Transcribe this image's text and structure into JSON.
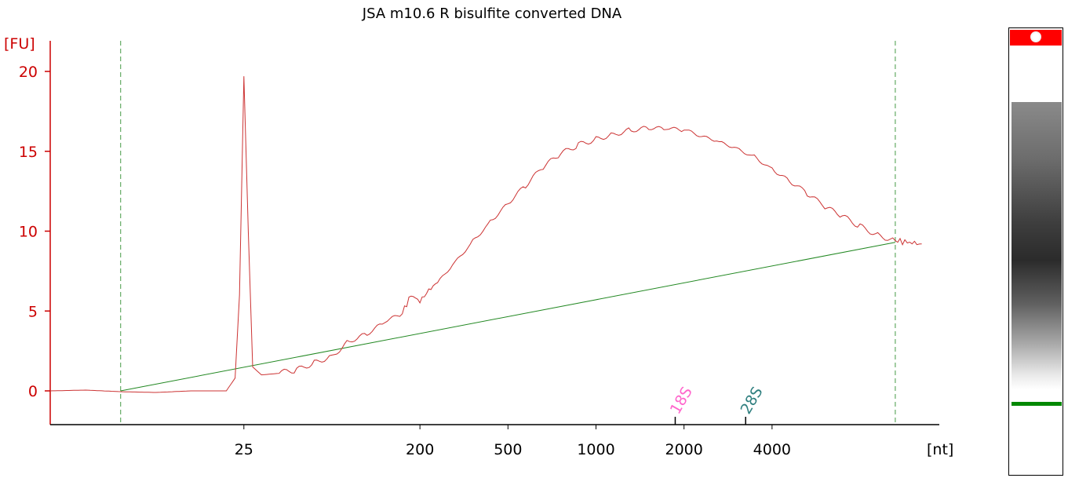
{
  "chart_data": {
    "type": "line",
    "title": "JSA m10.6 R bisulfite converted DNA",
    "ylabel": "[FU]",
    "xlabel": "[nt]",
    "ylim": [
      -2,
      22
    ],
    "yticks": [
      "0",
      "5",
      "10",
      "15",
      "20"
    ],
    "xticks": [
      {
        "label": "25",
        "t": 50
      },
      {
        "label": "200",
        "t": 70
      },
      {
        "label": "500",
        "t": 80
      },
      {
        "label": "1000",
        "t": 90
      },
      {
        "label": "2000",
        "t": 100
      },
      {
        "label": "4000",
        "t": 110
      }
    ],
    "xlim_t": [
      28,
      129
    ],
    "markers": [
      {
        "label": "18S",
        "t": 99,
        "color": "#ff66cc"
      },
      {
        "label": "28S",
        "t": 107,
        "color": "#2f7f7f"
      }
    ],
    "region_bounds_t": [
      36,
      124
    ],
    "baseline": {
      "t": [
        36,
        124
      ],
      "y": [
        0,
        9.3
      ],
      "color": "#228822"
    },
    "series": [
      {
        "color": "#cc3333",
        "t": [
          28,
          32,
          36,
          40,
          44,
          48,
          49,
          49.5,
          50,
          50.5,
          51,
          52,
          54,
          56,
          58,
          60,
          62,
          64,
          66,
          68,
          69,
          70,
          71,
          72,
          74,
          76,
          78,
          80,
          82,
          84,
          86,
          88,
          90,
          92,
          94,
          96,
          98,
          100,
          102,
          104,
          106,
          108,
          110,
          112,
          114,
          116,
          118,
          120,
          122,
          124,
          127
        ],
        "y": [
          0,
          0.05,
          -0.05,
          -0.1,
          0,
          0,
          0.8,
          6,
          19.7,
          10,
          1.5,
          1.0,
          1.1,
          1.3,
          1.8,
          2.2,
          3.1,
          3.5,
          4.3,
          4.9,
          6.0,
          5.6,
          6.3,
          6.8,
          8.0,
          9.3,
          10.6,
          11.8,
          12.9,
          14.0,
          14.8,
          15.4,
          15.8,
          16.1,
          16.3,
          16.4,
          16.4,
          16.4,
          16.0,
          15.6,
          15.1,
          14.6,
          13.9,
          13.2,
          12.4,
          11.5,
          10.9,
          10.3,
          9.8,
          9.4,
          9.2
        ]
      }
    ]
  },
  "gel": {
    "marker_color": "#ff0000",
    "band_color": "#008800"
  }
}
